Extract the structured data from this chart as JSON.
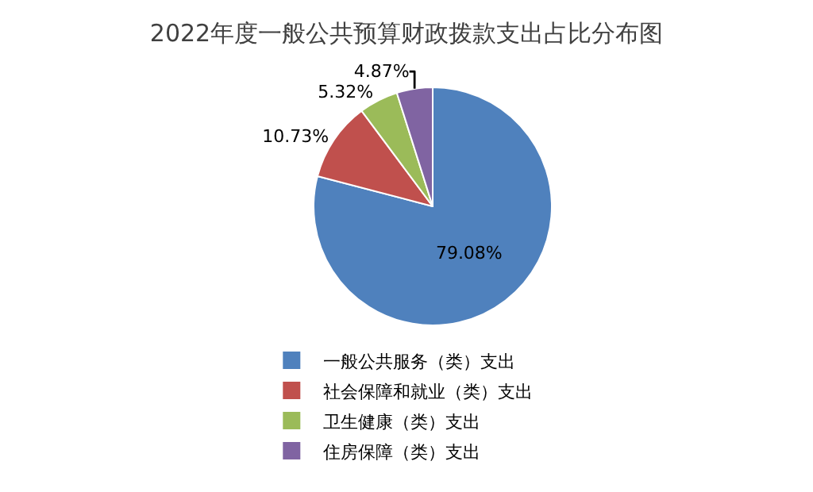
{
  "chart_data": {
    "type": "pie",
    "title": "2022年度一般公共预算财政拨款支出占比分布图",
    "categories": [
      "一般公共服务（类）支出",
      "社会保障和就业（类）支出",
      "卫生健康（类）支出",
      "住房保障（类）支出"
    ],
    "values": [
      79.08,
      10.73,
      5.32,
      4.87
    ],
    "colors": [
      "#4f81bd",
      "#c0504d",
      "#9bbb59",
      "#8064a2"
    ],
    "value_labels": [
      "79.08%",
      "10.73%",
      "5.32%",
      "4.87%"
    ],
    "legend": "bottom"
  }
}
